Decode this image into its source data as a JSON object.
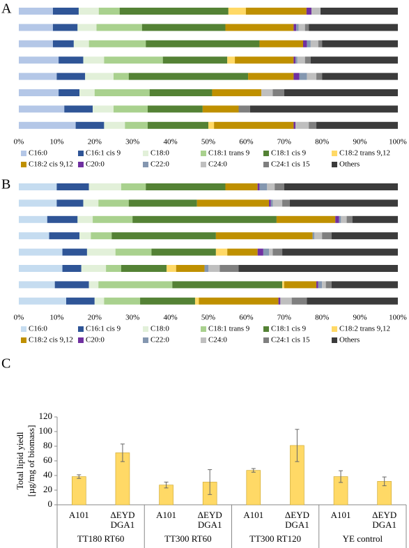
{
  "chart_data": [
    {
      "type": "stacked_bar_h",
      "panel": "A",
      "categories": [
        null,
        null,
        null,
        null,
        null,
        null,
        null,
        null
      ],
      "xlim": [
        0,
        100
      ],
      "xticks": [
        {
          "value": 0,
          "label": "0%"
        },
        {
          "value": 10,
          "label": "10%"
        },
        {
          "value": 20,
          "label": "20%"
        },
        {
          "value": 30,
          "label": "30%"
        },
        {
          "value": 40,
          "label": "40%"
        },
        {
          "value": 50,
          "label": "50%"
        },
        {
          "value": 60,
          "label": "60%"
        },
        {
          "value": 70,
          "label": "70%"
        },
        {
          "value": 80,
          "label": "80%"
        },
        {
          "value": 90,
          "label": "90%"
        },
        {
          "value": 100,
          "label": "100%"
        }
      ],
      "series": [
        {
          "name": "C16:0",
          "color": "#b4c7e7",
          "values": [
            9,
            9,
            9,
            10.5,
            10,
            10.5,
            12,
            15
          ]
        },
        {
          "name": "C16:1 cis 9",
          "color": "#2f5597",
          "values": [
            6.8,
            6.5,
            5.5,
            6.5,
            7.5,
            5.5,
            7.5,
            7.5
          ]
        },
        {
          "name": "C18:0",
          "color": "#e2f0d9",
          "values": [
            5.3,
            5,
            4,
            5.5,
            7.5,
            4,
            5.5,
            5.5
          ]
        },
        {
          "name": "C18:1 trans 9",
          "color": "#a9d18e",
          "values": [
            5.5,
            12,
            15,
            15.5,
            4,
            14.5,
            9,
            6
          ]
        },
        {
          "name": "C18:1 cis 9",
          "color": "#548235",
          "values": [
            28.7,
            22,
            30,
            17,
            31.5,
            16.5,
            14.5,
            16
          ]
        },
        {
          "name": "C18:2 trans 9,12",
          "color": "#ffd966",
          "values": [
            4.6,
            0,
            0,
            2,
            0,
            0,
            0,
            1.5
          ]
        },
        {
          "name": "C18:2 cis 9,12",
          "color": "#bf9000",
          "values": [
            16,
            18,
            11.5,
            15.5,
            12,
            13,
            9.5,
            21
          ]
        },
        {
          "name": "C20:0",
          "color": "#7030a0",
          "values": [
            1.3,
            0.7,
            1,
            0.5,
            1.5,
            0,
            0,
            0.5
          ]
        },
        {
          "name": "C22:0",
          "color": "#8497b0",
          "values": [
            0,
            0.6,
            1,
            0.5,
            2,
            0,
            0,
            0
          ]
        },
        {
          "name": "C24:0",
          "color": "#bfbfbf",
          "values": [
            2.4,
            1.7,
            2,
            2,
            2.5,
            3,
            0,
            3.5
          ]
        },
        {
          "name": "C24:1 cis 15",
          "color": "#7f7f7f",
          "values": [
            0,
            1,
            1,
            1.5,
            1.5,
            3,
            3,
            2
          ]
        },
        {
          "name": "Others",
          "color": "#3b3b3b",
          "values": [
            20.4,
            23.5,
            20,
            23,
            20,
            30,
            39,
            21.5
          ]
        }
      ]
    },
    {
      "type": "stacked_bar_h",
      "panel": "B",
      "categories": [
        null,
        null,
        null,
        null,
        null,
        null,
        null,
        null
      ],
      "xlim": [
        0,
        100
      ],
      "xticks": [
        {
          "value": 0,
          "label": "0%"
        },
        {
          "value": 10,
          "label": "10%"
        },
        {
          "value": 20,
          "label": "20%"
        },
        {
          "value": 30,
          "label": "30%"
        },
        {
          "value": 40,
          "label": "40%"
        },
        {
          "value": 50,
          "label": "50%"
        },
        {
          "value": 60,
          "label": "60%"
        },
        {
          "value": 70,
          "label": "70%"
        },
        {
          "value": 80,
          "label": "80%"
        },
        {
          "value": 90,
          "label": "90%"
        },
        {
          "value": 100,
          "label": "100%"
        }
      ],
      "series": [
        {
          "name": "C16:0",
          "color": "#c5dcf0",
          "values": [
            10,
            10,
            7.5,
            8,
            11.5,
            11.5,
            9.5,
            12.5
          ]
        },
        {
          "name": "C16:1 cis 9",
          "color": "#2f5597",
          "values": [
            8.5,
            7,
            8,
            8,
            6.5,
            5,
            9,
            7.5
          ]
        },
        {
          "name": "C18:0",
          "color": "#e2f0d9",
          "values": [
            8.5,
            4,
            4,
            3,
            7.5,
            6.5,
            2.5,
            2.5
          ]
        },
        {
          "name": "C18:1 trans 9",
          "color": "#a9d18e",
          "values": [
            6.5,
            8,
            10.5,
            5.5,
            9.5,
            4,
            19.5,
            9.5
          ]
        },
        {
          "name": "C18:1 cis 9",
          "color": "#548235",
          "values": [
            21,
            18,
            38,
            27.5,
            17,
            12,
            29,
            14.5
          ]
        },
        {
          "name": "C18:2 trans 9,12",
          "color": "#ffd966",
          "values": [
            0,
            0,
            0,
            0,
            3,
            2.5,
            0.5,
            1
          ]
        },
        {
          "name": "C18:2 cis 9,12",
          "color": "#bf9000",
          "values": [
            8.5,
            19,
            15.5,
            25.5,
            8,
            7.5,
            8.5,
            21
          ]
        },
        {
          "name": "C20:0",
          "color": "#7030a0",
          "values": [
            0.5,
            0.5,
            1,
            0,
            1.5,
            0,
            0.5,
            0.5
          ]
        },
        {
          "name": "C22:0",
          "color": "#8497b0",
          "values": [
            2,
            0.5,
            0.5,
            0.5,
            1.5,
            1,
            1,
            0
          ]
        },
        {
          "name": "C24:0",
          "color": "#bfbfbf",
          "values": [
            2,
            2.5,
            1.5,
            2,
            1,
            3,
            1,
            3
          ]
        },
        {
          "name": "C24:1 cis 15",
          "color": "#7f7f7f",
          "values": [
            2.5,
            2,
            1.5,
            2.5,
            2.5,
            5,
            1.5,
            4
          ]
        },
        {
          "name": "Others",
          "color": "#3b3b3b",
          "values": [
            30,
            28.5,
            12,
            17.5,
            30.5,
            42,
            17.5,
            24
          ]
        }
      ]
    },
    {
      "type": "bar",
      "panel": "C",
      "ylabel": [
        "Total lipid yiedl",
        "[µg/mg of biomass]"
      ],
      "categories": [
        [
          "A101"
        ],
        [
          "ΔEYD",
          "DGA1"
        ],
        [
          "A101"
        ],
        [
          "ΔEYD",
          "DGA1"
        ],
        [
          "A101"
        ],
        [
          "ΔEYD",
          "DGA1"
        ],
        [
          "A101"
        ],
        [
          "ΔEYD",
          "DGA1"
        ]
      ],
      "groups": [
        "TT180 RT60",
        "TT300 RT60",
        "TT300 RT120",
        "YE control"
      ],
      "values": [
        38.5,
        71,
        27,
        31,
        47,
        81,
        38.5,
        32
      ],
      "errors": [
        2.5,
        12,
        4,
        17,
        2.5,
        22,
        8,
        6
      ],
      "color": "#ffd966",
      "ylim": [
        0,
        120
      ],
      "yticks": [
        0,
        20,
        40,
        60,
        80,
        100,
        120
      ]
    }
  ]
}
